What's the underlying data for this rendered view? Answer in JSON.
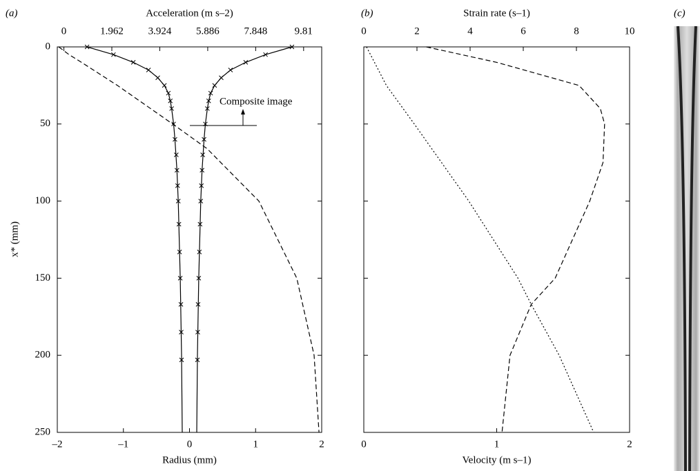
{
  "chart_data": [
    {
      "type": "line",
      "panel_label": "(a)",
      "xlabel": "Radius (mm)",
      "x2label": "Acceleration (m s–2)",
      "ylabel": "x* (mm)",
      "xlim": [
        -2,
        2
      ],
      "xticks": [
        {
          "value": -2,
          "label": "–2"
        },
        {
          "value": -1,
          "label": "–1"
        },
        0,
        1,
        2
      ],
      "x2lim": [
        -0.27,
        10.55
      ],
      "x2ticks": [
        0,
        1.962,
        3.924,
        5.886,
        7.848,
        9.81
      ],
      "ylim": [
        0,
        250
      ],
      "yticks": [
        0,
        50,
        100,
        150,
        200,
        250
      ],
      "y_inverted": true,
      "ytick_labels": true,
      "annotation": "Composite image",
      "series": [
        {
          "color": "#000000",
          "dash": "solid",
          "y": [
            0,
            5,
            10,
            15,
            20,
            25,
            30,
            35,
            40,
            50,
            60,
            80,
            100,
            150,
            200,
            250
          ],
          "values": [
            1.55,
            1.15,
            0.85,
            0.62,
            0.48,
            0.38,
            0.32,
            0.29,
            0.27,
            0.24,
            0.22,
            0.19,
            0.17,
            0.14,
            0.12,
            0.11
          ]
        },
        {
          "color": "#000000",
          "dash": "solid",
          "y": [
            0,
            5,
            10,
            15,
            20,
            25,
            30,
            35,
            40,
            50,
            60,
            80,
            100,
            150,
            200,
            250
          ],
          "values": [
            -1.55,
            -1.15,
            -0.85,
            -0.62,
            -0.48,
            -0.38,
            -0.32,
            -0.29,
            -0.27,
            -0.24,
            -0.22,
            -0.19,
            -0.17,
            -0.14,
            -0.12,
            -0.11
          ]
        },
        {
          "color": "#000000",
          "marker": "x",
          "y": [
            0,
            5,
            10,
            15,
            20,
            25,
            30,
            35,
            40,
            50,
            60,
            70,
            80,
            90,
            100,
            115,
            133,
            150,
            167,
            185,
            203
          ],
          "values": [
            1.55,
            1.15,
            0.85,
            0.62,
            0.48,
            0.38,
            0.32,
            0.29,
            0.27,
            0.24,
            0.22,
            0.2,
            0.19,
            0.18,
            0.17,
            0.16,
            0.15,
            0.14,
            0.13,
            0.125,
            0.12
          ]
        },
        {
          "color": "#000000",
          "marker": "x",
          "y": [
            0,
            5,
            10,
            15,
            20,
            25,
            30,
            35,
            40,
            50,
            60,
            70,
            80,
            90,
            100,
            115,
            133,
            150,
            167,
            185,
            203
          ],
          "values": [
            -1.55,
            -1.15,
            -0.85,
            -0.62,
            -0.48,
            -0.38,
            -0.32,
            -0.29,
            -0.27,
            -0.24,
            -0.22,
            -0.2,
            -0.19,
            -0.18,
            -0.17,
            -0.16,
            -0.15,
            -0.14,
            -0.13,
            -0.125,
            -0.12
          ]
        },
        {
          "color": "#000000",
          "dash": "dashed",
          "axis": "x2",
          "y": [
            0,
            5,
            10,
            25,
            50,
            66,
            100,
            150,
            200,
            250
          ],
          "values": [
            -0.21,
            0.21,
            0.72,
            2.19,
            4.45,
            5.86,
            7.98,
            9.53,
            10.24,
            10.44
          ]
        }
      ]
    },
    {
      "type": "line",
      "panel_label": "(b)",
      "xlabel": "Velocity (m s–1)",
      "x2label": "Strain rate (s–1)",
      "xlim": [
        0,
        2
      ],
      "xticks": [
        0,
        1,
        2
      ],
      "x2lim": [
        0,
        10
      ],
      "x2ticks": [
        0,
        2,
        4,
        6,
        8,
        10
      ],
      "ylim": [
        0,
        250
      ],
      "yticks": [
        0,
        50,
        100,
        150,
        200,
        250
      ],
      "y_inverted": true,
      "ytick_labels": false,
      "series": [
        {
          "color": "#000000",
          "dash": "dashed",
          "axis": "x2",
          "y": [
            0,
            10,
            25,
            40,
            50,
            75,
            100,
            150,
            167,
            200,
            250
          ],
          "values": [
            2.35,
            5.0,
            8.1,
            8.9,
            9.06,
            9.0,
            8.5,
            7.2,
            6.3,
            5.5,
            5.2
          ]
        },
        {
          "color": "#000000",
          "dash": "dotted",
          "y": [
            0,
            25,
            50,
            100,
            150,
            167,
            200,
            250
          ],
          "values": [
            0.02,
            0.17,
            0.38,
            0.79,
            1.16,
            1.26,
            1.47,
            1.73
          ]
        }
      ]
    }
  ],
  "panel_c": {
    "label": "(c)"
  }
}
